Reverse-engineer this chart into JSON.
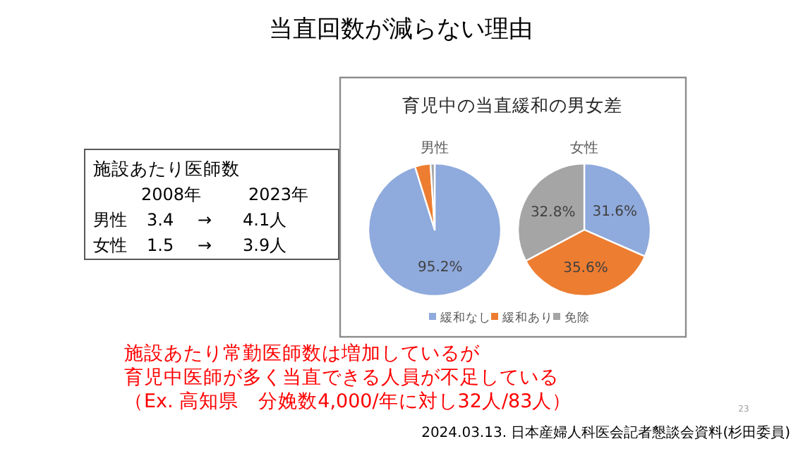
{
  "chart_data": [
    {
      "type": "other",
      "title": "当直回数が減らない理由",
      "subtitle": "施設あたり医師数",
      "annotations": [
        "2008年",
        "2023年",
        "男性",
        "3.4",
        "→",
        "4.1人",
        "女性",
        "1.5",
        "→",
        "3.9人",
        "施設あたり常勤医師数は増加しているが",
        "育児中医師が多く当直できる人員が不足している",
        "（Ex. 高知県　分娩数4,000/年に対し32人/83人）",
        "23",
        "2024.03.13. 日本産婦人科医会記者懇談会資料(杉田委員)"
      ]
    },
    {
      "type": "pie",
      "title": "男性",
      "subtitle": "育児中の当直緩和の男女差",
      "categories": [
        null,
        null,
        null
      ],
      "values": [
        95.2,
        3.8,
        1.0
      ],
      "colors": [
        "#8faadc",
        "#ed7d31",
        "#a5a5a5"
      ],
      "value_labels": [
        "95.2%",
        null,
        null
      ]
    },
    {
      "type": "pie",
      "title": "女性",
      "categories": [
        "緩和なし",
        "緩和あり",
        "免除"
      ],
      "values": [
        31.6,
        35.6,
        32.8
      ],
      "colors": [
        "#8faadc",
        "#ed7d31",
        "#a5a5a5"
      ],
      "value_labels": [
        "31.6%",
        "35.6%",
        "32.8%"
      ],
      "legend": "bottom"
    }
  ]
}
